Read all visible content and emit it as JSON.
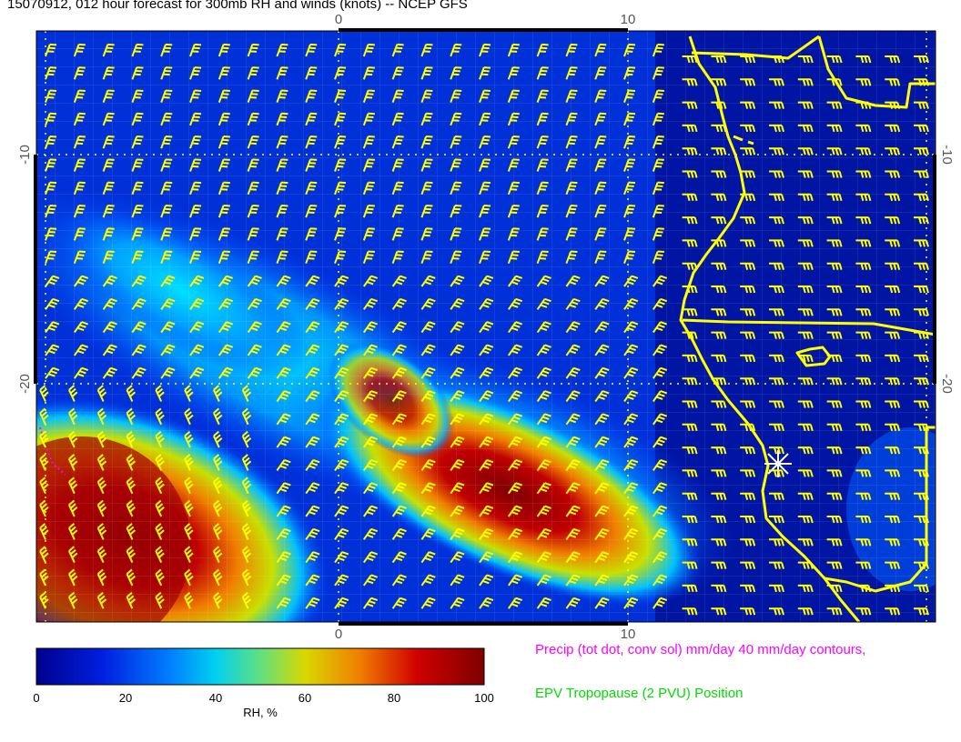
{
  "title": "15070912, 012 hour forecast for 300mb RH and winds (knots) -- NCEP GFS",
  "axes": {
    "top_ticks": [
      "0",
      "10"
    ],
    "bottom_ticks": [
      "0",
      "10"
    ],
    "left_ticks": [
      "-10",
      "-20"
    ],
    "right_ticks": [
      "-10",
      "-20"
    ]
  },
  "colorbar": {
    "ticks": [
      "0",
      "20",
      "40",
      "60",
      "80",
      "100"
    ],
    "label": "RH, %",
    "colors": [
      "#00008f",
      "#0040ff",
      "#00c0ff",
      "#c8e000",
      "#f08000",
      "#c00000",
      "#800000"
    ]
  },
  "legend": {
    "precip": "Precip (tot dot, conv sol) mm/day 40 mm/day contours,",
    "epv": "EPV Tropopause (2 PVU) Position"
  },
  "colors": {
    "barbs": "#ffff00",
    "coast": "#ffff00",
    "precip": "#ff00ff",
    "epv": "#00dd00"
  }
}
